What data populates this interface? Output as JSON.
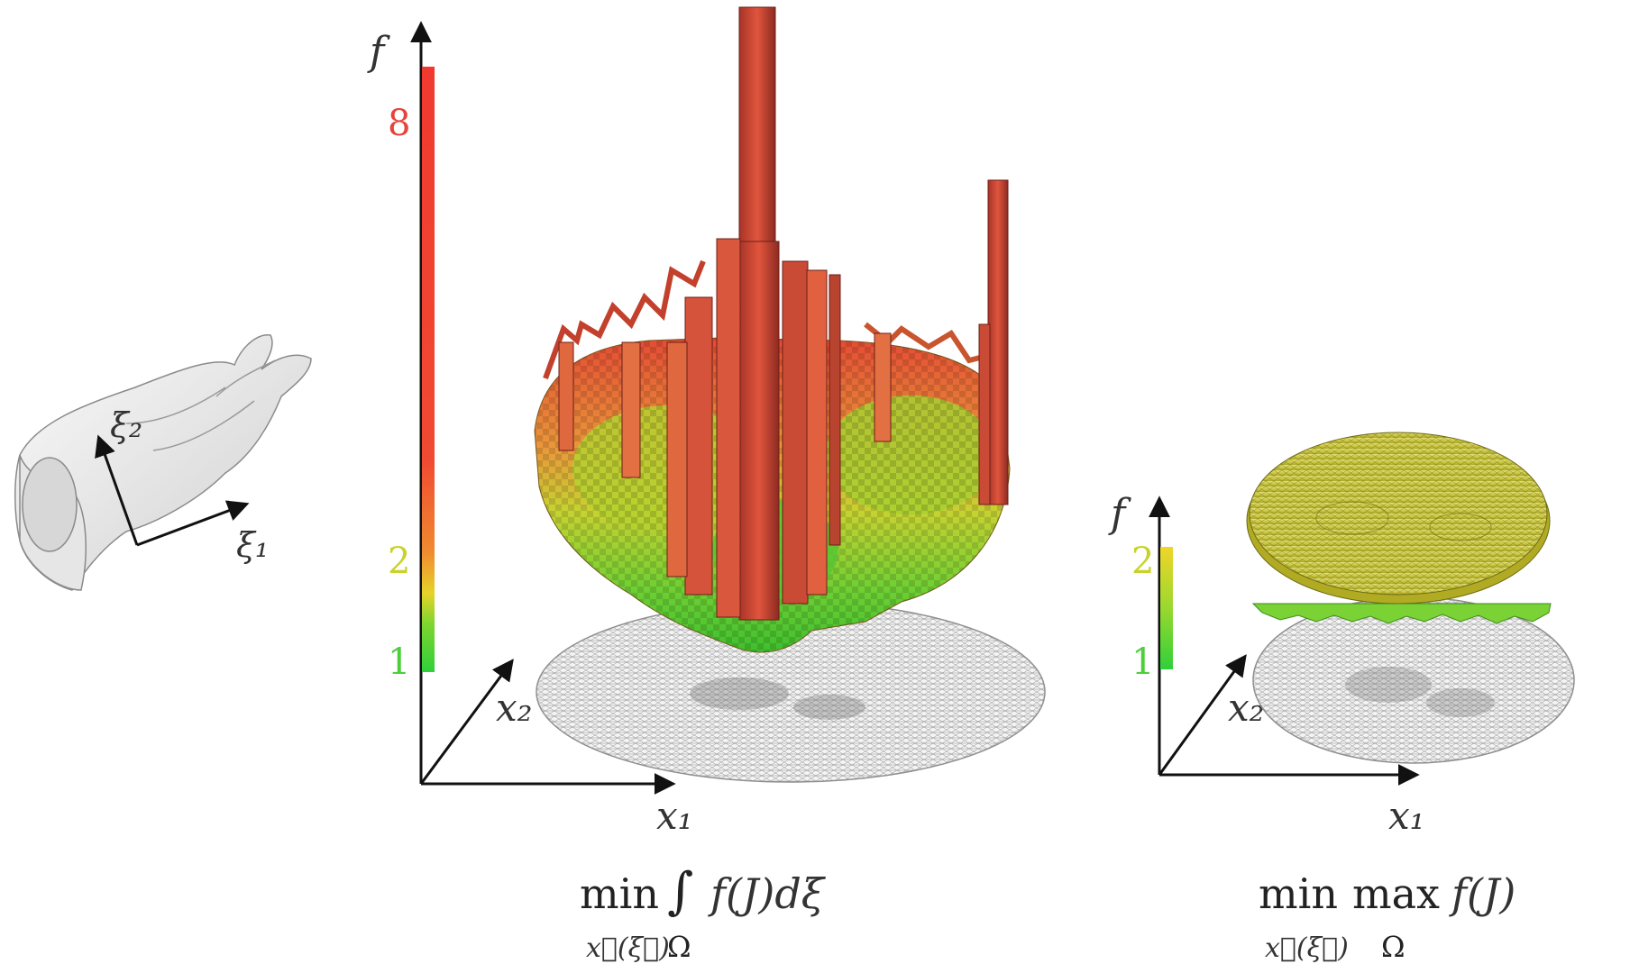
{
  "hand_panel": {
    "xi2_label": "ξ₂",
    "xi1_label": "ξ₁"
  },
  "left_panel": {
    "f_label": "f",
    "x1_label": "x₁",
    "x2_label": "x₂",
    "colorbar_ticks": [
      {
        "label": "8",
        "value": 8,
        "color": "#e8423a"
      },
      {
        "label": "2",
        "value": 2,
        "color": "#c8d22a"
      },
      {
        "label": "1",
        "value": 1,
        "color": "#4ccf3a"
      }
    ],
    "formula_min": "min",
    "formula_sub": "x⃗(ξ⃗)",
    "formula_integral": "∫",
    "formula_body": "f(J)dξ",
    "formula_omega": "Ω"
  },
  "right_panel": {
    "f_label": "f",
    "x1_label": "x₁",
    "x2_label": "x₂",
    "colorbar_ticks": [
      {
        "label": "2",
        "value": 2,
        "color": "#c8d22a"
      },
      {
        "label": "1",
        "value": 1,
        "color": "#4ccf3a"
      }
    ],
    "formula_min": "min",
    "formula_sub": "x⃗(ξ⃗)",
    "formula_max": "max",
    "formula_omega": "Ω",
    "formula_body": "f(J)"
  },
  "colors": {
    "low": "#3fd13a",
    "mid": "#d9d42a",
    "high": "#e8493a",
    "axis": "#111111",
    "mesh": "#9a9a9a"
  }
}
